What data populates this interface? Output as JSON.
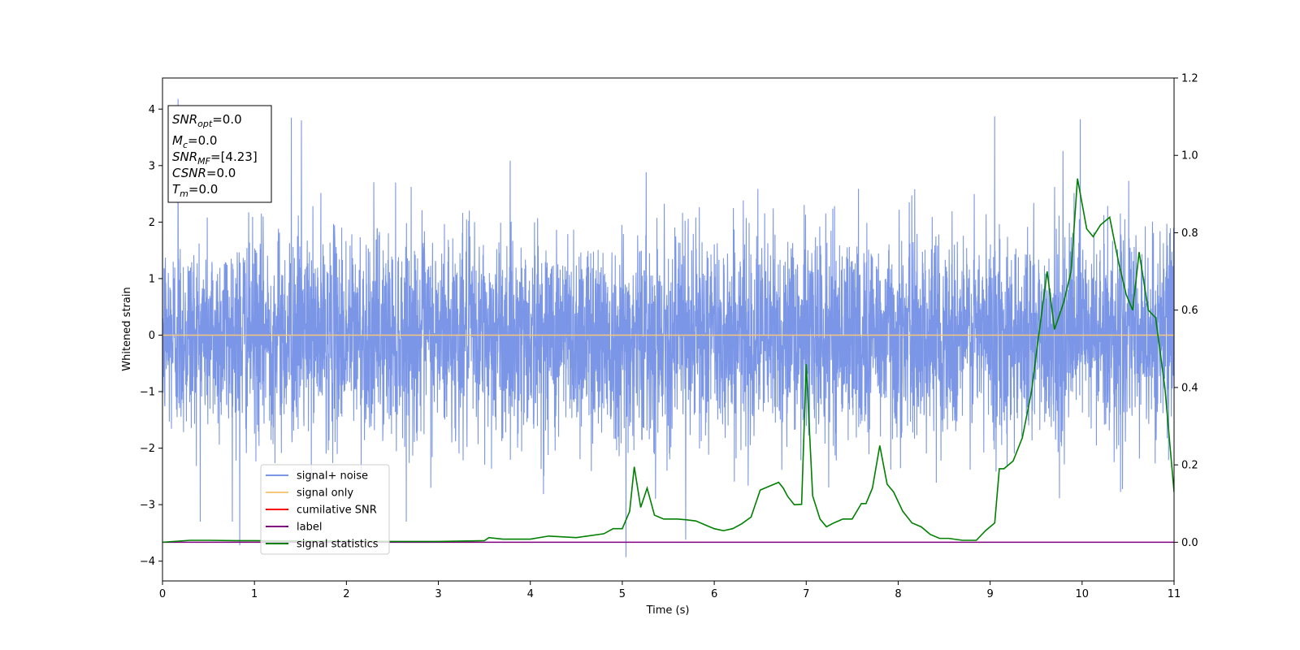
{
  "chart_data": {
    "type": "line",
    "xlabel": "Time (s)",
    "ylabel": "Whitened strain",
    "xlim": [
      0,
      11
    ],
    "ylim_left": [
      -4.35,
      4.55
    ],
    "ylim_right": [
      -0.1,
      1.2
    ],
    "x_ticks": [
      0,
      1,
      2,
      3,
      4,
      5,
      6,
      7,
      8,
      9,
      10,
      11
    ],
    "y_ticks_left": [
      -4,
      -3,
      -2,
      -1,
      0,
      1,
      2,
      3,
      4
    ],
    "y_ticks_right": [
      0.0,
      0.2,
      0.4,
      0.6,
      0.8,
      1.0,
      1.2
    ],
    "grid": false,
    "legend_position": "lower-left",
    "info_box": {
      "snr_opt": {
        "base": "SNR",
        "sub": "opt",
        "value": "=0.0"
      },
      "mc": {
        "base": "M",
        "sub": "c",
        "value": "=0.0"
      },
      "snr_mf": {
        "base": "SNR",
        "sub": "MF",
        "value": "=[4.23]"
      },
      "csnr": {
        "base": "CSNR",
        "value": "=0.0"
      },
      "tm": {
        "base": "T",
        "sub": "m",
        "value": "=0.0"
      }
    },
    "series": [
      {
        "name": "signal+ noise",
        "axis": "left",
        "color": "#7b96e6",
        "noise_sigma": 0.9,
        "duration_s": 11,
        "spikes": [
          {
            "x": 0.17,
            "y": 4.18
          },
          {
            "x": 0.84,
            "y": -3.72
          },
          {
            "x": 1.4,
            "y": 3.85
          },
          {
            "x": 1.51,
            "y": 3.8
          },
          {
            "x": 5.04,
            "y": -3.93
          },
          {
            "x": 5.69,
            "y": -3.62
          },
          {
            "x": 9.05,
            "y": 3.87
          },
          {
            "x": 9.98,
            "y": 3.82
          }
        ]
      },
      {
        "name": "signal only",
        "axis": "left",
        "color": "#f5c77e",
        "x": [
          0,
          11
        ],
        "y": [
          0,
          0
        ]
      },
      {
        "name": "cumilative SNR",
        "axis": "left",
        "color": "#ff0000",
        "x": [],
        "y": []
      },
      {
        "name": "label",
        "axis": "right",
        "color": "#800080",
        "x": [
          0,
          11
        ],
        "y": [
          0,
          0
        ]
      },
      {
        "name": "signal statistics",
        "axis": "right",
        "color": "#008000",
        "x": [
          0,
          0.3,
          0.5,
          0.8,
          1.0,
          1.5,
          2.0,
          2.5,
          3.0,
          3.5,
          3.55,
          3.7,
          4.0,
          4.2,
          4.5,
          4.8,
          4.9,
          5.0,
          5.08,
          5.13,
          5.2,
          5.27,
          5.35,
          5.45,
          5.6,
          5.7,
          5.8,
          5.9,
          6.0,
          6.1,
          6.2,
          6.3,
          6.4,
          6.5,
          6.6,
          6.7,
          6.75,
          6.8,
          6.87,
          6.95,
          7.0,
          7.07,
          7.15,
          7.22,
          7.3,
          7.4,
          7.5,
          7.6,
          7.65,
          7.72,
          7.8,
          7.88,
          7.95,
          8.05,
          8.15,
          8.25,
          8.35,
          8.45,
          8.55,
          8.7,
          8.85,
          8.95,
          9.05,
          9.1,
          9.15,
          9.25,
          9.35,
          9.45,
          9.52,
          9.62,
          9.7,
          9.8,
          9.88,
          9.95,
          10.05,
          10.12,
          10.2,
          10.3,
          10.4,
          10.48,
          10.55,
          10.62,
          10.72,
          10.8,
          10.9,
          11.0
        ],
        "y": [
          0.0,
          0.005,
          0.005,
          0.004,
          0.004,
          0.003,
          0.003,
          0.002,
          0.002,
          0.004,
          0.012,
          0.008,
          0.008,
          0.016,
          0.012,
          0.022,
          0.035,
          0.035,
          0.08,
          0.195,
          0.09,
          0.14,
          0.07,
          0.06,
          0.06,
          0.058,
          0.055,
          0.045,
          0.035,
          0.03,
          0.035,
          0.048,
          0.065,
          0.135,
          0.145,
          0.155,
          0.14,
          0.118,
          0.097,
          0.098,
          0.46,
          0.12,
          0.06,
          0.04,
          0.05,
          0.06,
          0.06,
          0.1,
          0.1,
          0.14,
          0.25,
          0.15,
          0.13,
          0.08,
          0.05,
          0.04,
          0.02,
          0.01,
          0.01,
          0.005,
          0.005,
          0.03,
          0.05,
          0.19,
          0.19,
          0.21,
          0.27,
          0.39,
          0.52,
          0.7,
          0.55,
          0.62,
          0.7,
          0.94,
          0.81,
          0.79,
          0.82,
          0.84,
          0.72,
          0.64,
          0.6,
          0.75,
          0.6,
          0.58,
          0.4,
          0.13
        ]
      }
    ]
  }
}
